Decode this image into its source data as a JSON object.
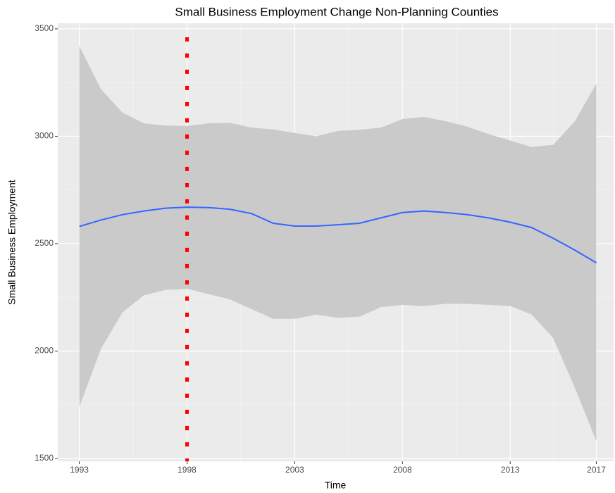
{
  "chart_data": {
    "type": "line",
    "title": "Small Business Employment Change Non-Planning Counties",
    "x_label": "Time",
    "y_label": "Small Business Employment",
    "x": [
      1993,
      1994,
      1995,
      1996,
      1997,
      1998,
      1999,
      2000,
      2001,
      2002,
      2003,
      2004,
      2005,
      2006,
      2007,
      2008,
      2009,
      2010,
      2011,
      2012,
      2013,
      2014,
      2015,
      2016,
      2017
    ],
    "series": [
      {
        "color": "#3366ff",
        "values": [
          2580,
          2610,
          2635,
          2652,
          2665,
          2670,
          2668,
          2660,
          2640,
          2595,
          2582,
          2582,
          2588,
          2595,
          2620,
          2645,
          2652,
          2645,
          2635,
          2620,
          2600,
          2575,
          2525,
          2470,
          2411
        ],
        "upper": [
          3420,
          3220,
          3110,
          3060,
          3050,
          3048,
          3060,
          3062,
          3040,
          3032,
          3015,
          3000,
          3025,
          3030,
          3040,
          3080,
          3090,
          3070,
          3045,
          3010,
          2980,
          2950,
          2960,
          3070,
          3245
        ],
        "lower": [
          1740,
          2010,
          2180,
          2260,
          2285,
          2290,
          2265,
          2240,
          2195,
          2150,
          2150,
          2170,
          2155,
          2160,
          2205,
          2215,
          2210,
          2220,
          2220,
          2215,
          2210,
          2170,
          2060,
          1830,
          1580
        ],
        "band_color": "#cacaca"
      }
    ],
    "reference_line": {
      "x": 1998,
      "color": "#ff0000"
    },
    "xlim": [
      1992,
      2017.8
    ],
    "ylim": [
      1487,
      3526
    ],
    "xticks": [
      1993,
      1998,
      2003,
      2008,
      2013,
      2017
    ],
    "yticks": [
      1500,
      2000,
      2500,
      3000,
      3500
    ],
    "grid": true
  }
}
